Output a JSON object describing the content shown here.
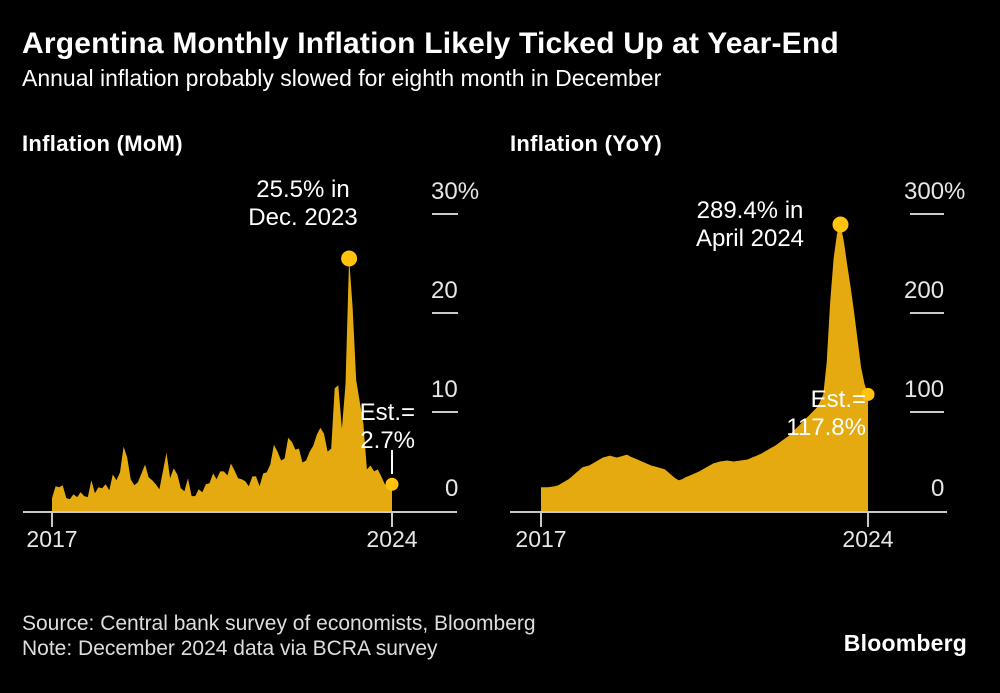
{
  "header": {
    "title": "Argentina Monthly Inflation Likely Ticked Up at Year-End",
    "subtitle": "Annual inflation probably slowed for eighth month in December"
  },
  "colors": {
    "background": "#000000",
    "gold_area": "#E4AA10",
    "gold_dot": "#FFC30D",
    "axis": "#C9C9C9",
    "axis_text": "#E6E6E6",
    "annotation_text": "#FFFFFF",
    "connector": "#FFFFFF"
  },
  "chart_data": [
    {
      "type": "area",
      "title": "Inflation (MoM)",
      "frequency": "monthly",
      "x_tick_labels": [
        "2017",
        "2024"
      ],
      "y_ticks": [
        {
          "label": "30%",
          "value": 30
        },
        {
          "label": "20",
          "value": 20
        },
        {
          "label": "10",
          "value": 10
        },
        {
          "label": "0",
          "value": 0
        }
      ],
      "ylim": [
        0,
        30
      ],
      "grid": false,
      "legend": false,
      "peak_annotation": {
        "line1": "25.5% in",
        "line2": "Dec. 2023",
        "month_index": 83,
        "value": 25.5
      },
      "end_annotation": {
        "line1": "Est.=",
        "line2": "2.7%",
        "month_index": 95,
        "value": 2.7,
        "connector": true
      },
      "values": [
        1.3,
        2.5,
        2.4,
        2.6,
        1.3,
        1.2,
        1.7,
        1.4,
        1.9,
        1.5,
        1.4,
        3.1,
        1.8,
        2.4,
        2.3,
        2.7,
        2.1,
        3.7,
        3.1,
        3.9,
        6.5,
        5.4,
        3.2,
        2.6,
        2.9,
        3.8,
        4.7,
        3.4,
        3.1,
        2.7,
        2.2,
        4.0,
        5.9,
        3.3,
        4.3,
        3.7,
        2.3,
        2.0,
        3.3,
        1.5,
        1.5,
        2.2,
        1.9,
        2.7,
        2.8,
        3.8,
        3.2,
        4.0,
        4.0,
        3.6,
        4.8,
        4.1,
        3.3,
        3.2,
        3.0,
        2.5,
        3.5,
        3.5,
        2.5,
        3.8,
        3.9,
        4.7,
        6.7,
        6.0,
        5.1,
        5.3,
        7.4,
        7.0,
        6.2,
        6.3,
        4.9,
        5.1,
        6.0,
        6.6,
        7.7,
        8.4,
        7.8,
        6.0,
        6.3,
        12.4,
        12.7,
        8.3,
        12.8,
        25.5,
        20.6,
        13.2,
        11.0,
        8.8,
        4.2,
        4.6,
        4.0,
        4.2,
        3.5,
        2.7,
        2.4,
        2.7
      ]
    },
    {
      "type": "area",
      "title": "Inflation (YoY)",
      "frequency": "monthly",
      "x_tick_labels": [
        "2017",
        "2024"
      ],
      "y_ticks": [
        {
          "label": "300%",
          "value": 300
        },
        {
          "label": "200",
          "value": 200
        },
        {
          "label": "100",
          "value": 100
        },
        {
          "label": "0",
          "value": 0
        }
      ],
      "ylim": [
        0,
        300
      ],
      "grid": false,
      "legend": false,
      "peak_annotation": {
        "line1": "289.4% in",
        "line2": "April 2024",
        "month_index": 87,
        "value": 289.4
      },
      "end_annotation": {
        "line1": "Est.=",
        "line2": "117.8%",
        "month_index": 95,
        "value": 117.8,
        "connector": false
      },
      "values": [
        24,
        24,
        24,
        24.5,
        25,
        26,
        28,
        30,
        32,
        35,
        38,
        41,
        44,
        45,
        46,
        48,
        50,
        52,
        54,
        55,
        56,
        55,
        54,
        55,
        56,
        57,
        55,
        53.5,
        52,
        50.5,
        49,
        47.5,
        46,
        45,
        44,
        43,
        42,
        39,
        36,
        33,
        31,
        32,
        34,
        35.5,
        37,
        38.5,
        40,
        42,
        44,
        46,
        48,
        49,
        50,
        50.5,
        51,
        50.5,
        50,
        50.5,
        51,
        51.5,
        52,
        53.5,
        55,
        56.5,
        58,
        60,
        62,
        64,
        66,
        68.5,
        71,
        73.5,
        76,
        79.5,
        83,
        86.5,
        90,
        93.5,
        97,
        100.5,
        104,
        110,
        118,
        150,
        210,
        255,
        280,
        289.4,
        272,
        248,
        225,
        200,
        172,
        145,
        128,
        117.8
      ]
    }
  ],
  "footer": {
    "source": "Source: Central bank survey of economists, Bloomberg",
    "note": "Note: December 2024 data via BCRA survey",
    "logo": "Bloomberg"
  }
}
